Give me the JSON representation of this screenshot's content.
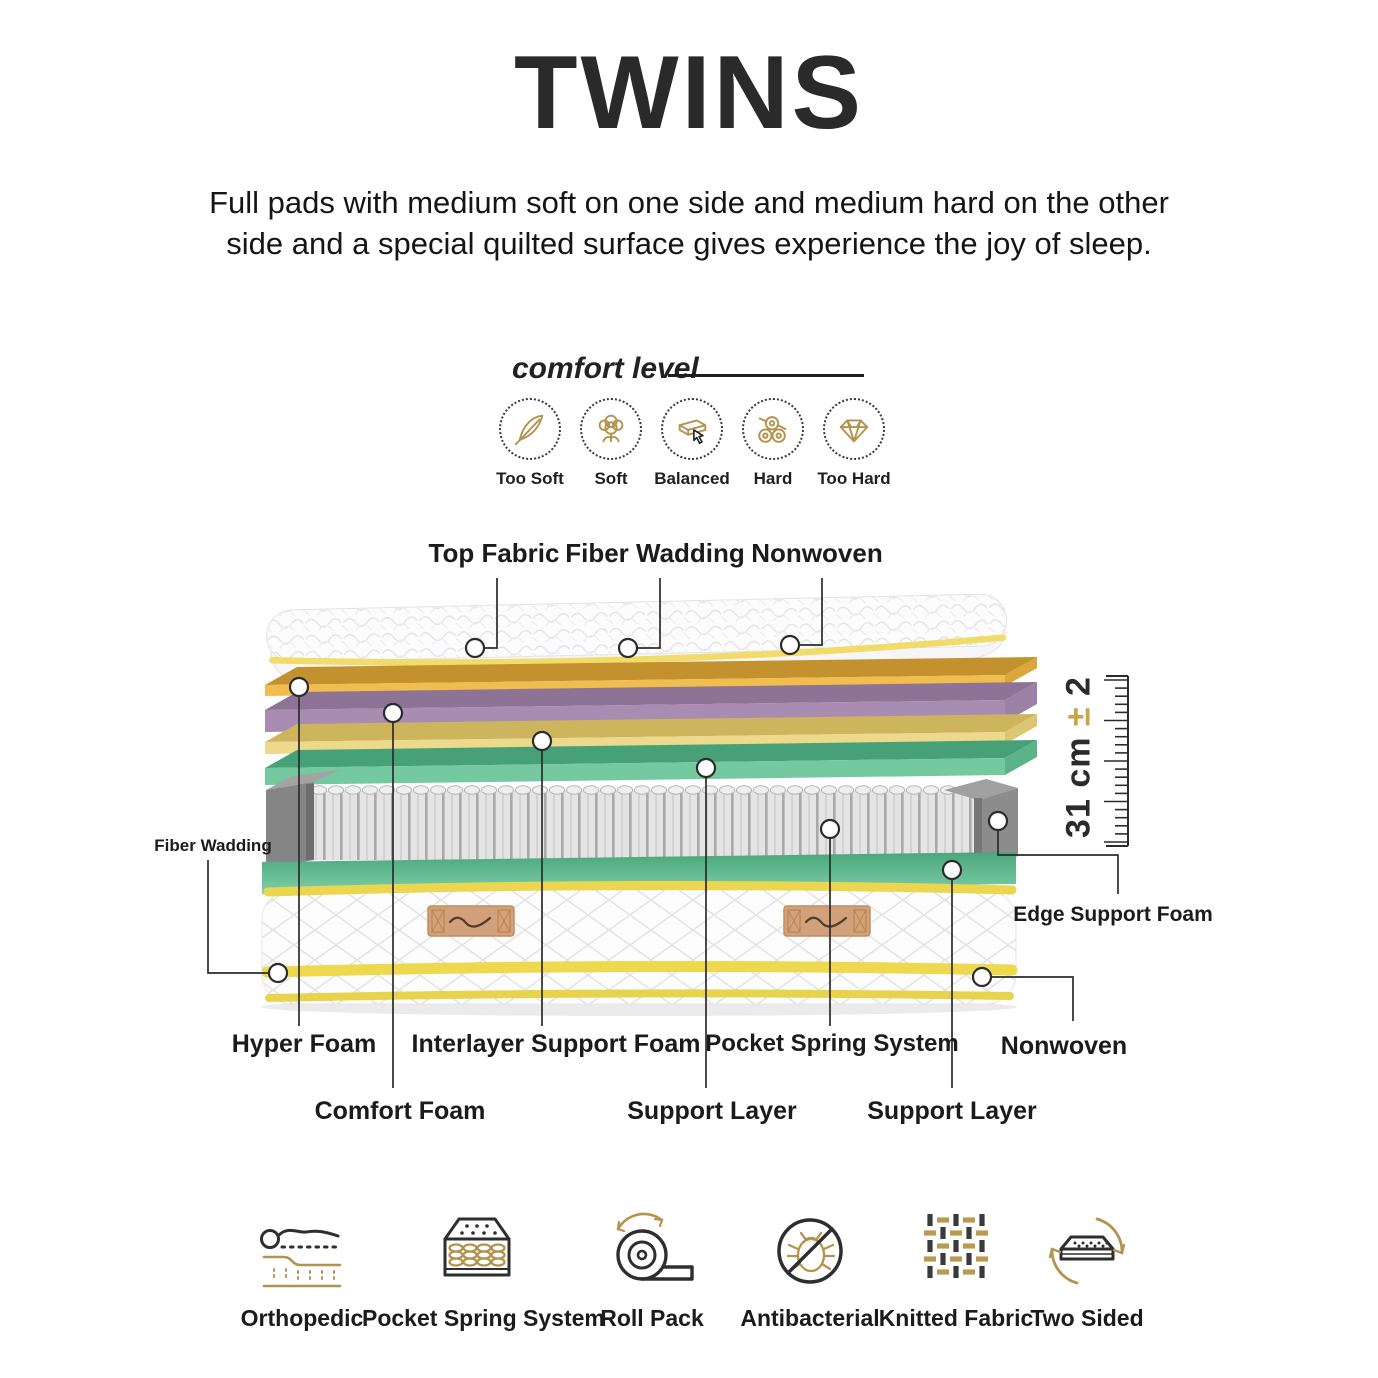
{
  "title": "TWINS",
  "description": "Full pads with medium soft on one side and medium hard on the other side and a special quilted surface gives experience the joy of sleep.",
  "comfort": {
    "heading": "comfort level",
    "levels": [
      {
        "label": "Too Soft",
        "icon": "feather-icon",
        "selected": false
      },
      {
        "label": "Soft",
        "icon": "cotton-icon",
        "selected": false
      },
      {
        "label": "Balanced",
        "icon": "mattress-press-icon",
        "selected": true
      },
      {
        "label": "Hard",
        "icon": "logs-icon",
        "selected": false
      },
      {
        "label": "Too Hard",
        "icon": "diamond-icon",
        "selected": false
      }
    ]
  },
  "diagram": {
    "callouts_top": [
      "Top Fabric",
      "Fiber Wadding",
      "Nonwoven"
    ],
    "callout_left": "Fiber Wadding",
    "callout_right": "Edge Support Foam",
    "callouts_bottom_row1": [
      "Hyper Foam",
      "Interlayer Support Foam",
      "Pocket Spring System",
      "Nonwoven"
    ],
    "callouts_bottom_row2": [
      "Comfort Foam",
      "Support Layer",
      "Support Layer"
    ],
    "height_note": "31 cm ± 2",
    "height_note_parts": [
      "31 cm ",
      "±",
      " 2"
    ],
    "layers": [
      {
        "name": "Top Pad (Top Fabric / Fiber Wadding / Nonwoven)",
        "color": "#fcfcfd"
      },
      {
        "name": "Hyper Foam",
        "color": "#f1bd4e"
      },
      {
        "name": "Comfort Foam",
        "color": "#a98cb2"
      },
      {
        "name": "Interlayer Support Foam",
        "color": "#ecd98b"
      },
      {
        "name": "Support Layer",
        "color": "#74c9a0"
      },
      {
        "name": "Pocket Spring System",
        "color": "#e3e3e3"
      },
      {
        "name": "Support Layer",
        "color": "#5fb98e"
      },
      {
        "name": "Base with Fiber Wadding / Nonwoven",
        "color": "#fbfbfb"
      }
    ]
  },
  "features": [
    {
      "label": "Orthopedic",
      "icon": "orthopedic-icon"
    },
    {
      "label": "Pocket Spring System",
      "icon": "pocket-spring-icon"
    },
    {
      "label": "Roll Pack",
      "icon": "roll-pack-icon"
    },
    {
      "label": "Antibacterial",
      "icon": "antibacterial-icon"
    },
    {
      "label": "Knitted Fabric",
      "icon": "knitted-fabric-icon"
    },
    {
      "label": "Two Sided",
      "icon": "two-sided-icon"
    }
  ],
  "colors": {
    "dark": "#2e2e2e",
    "accent_gold": "#b3934d",
    "piping_yellow": "#eed84e",
    "edge_foam_gray": "#8a8a8a",
    "spring_gray": "#e3e3e3",
    "patch_tan": "#d2a17c"
  }
}
